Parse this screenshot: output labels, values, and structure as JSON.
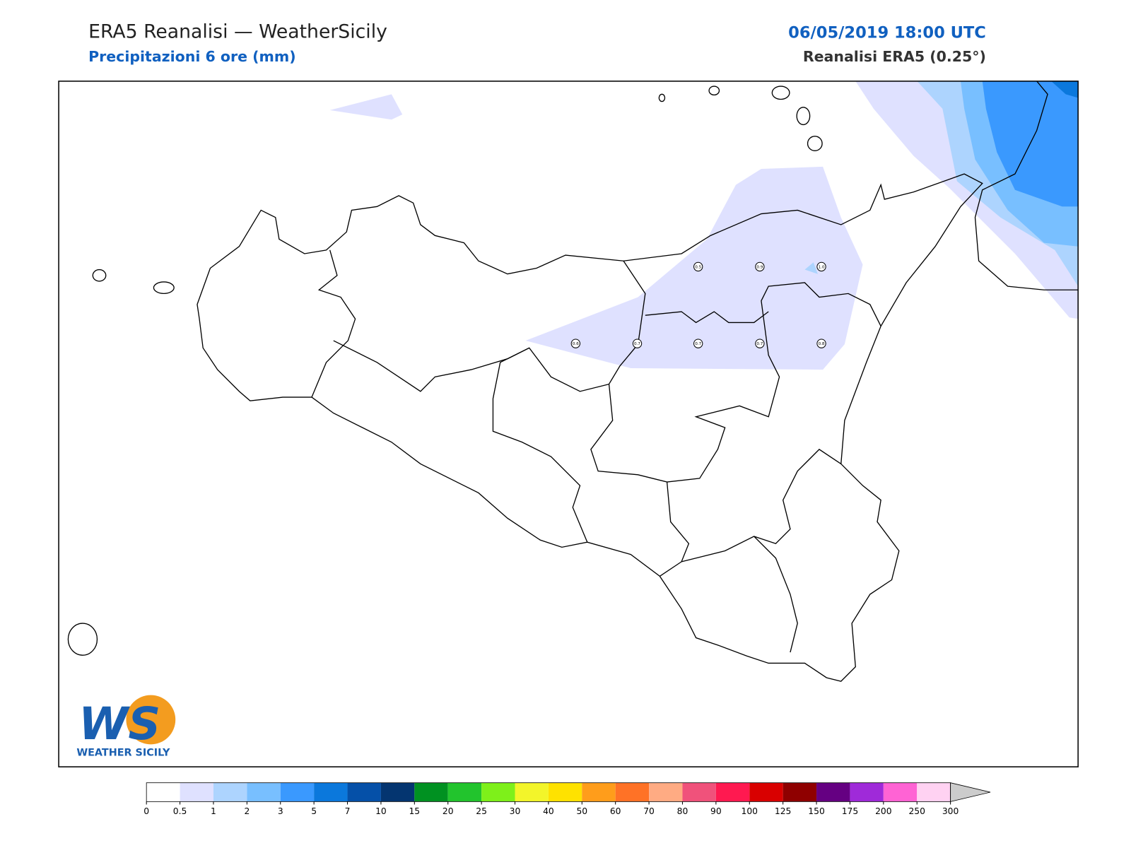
{
  "header": {
    "title": "ERA5 Reanalisi — WeatherSicily",
    "subtitle": "Precipitazioni 6 ore (mm)",
    "datetime": "06/05/2019 18:00 UTC",
    "source": "Reanalisi ERA5 (0.25°)"
  },
  "map": {
    "stations": [
      "0.5",
      "0.9",
      "1.0",
      "0.6",
      "0.7",
      "0.7",
      "0.7",
      "0.8"
    ]
  },
  "colorbar": {
    "ticks": [
      0,
      0.5,
      1,
      2,
      3,
      5,
      7,
      10,
      15,
      20,
      25,
      30,
      40,
      50,
      60,
      70,
      80,
      90,
      100,
      125,
      150,
      175,
      200,
      250,
      300
    ],
    "colors": [
      "#ffffff",
      "#dfe1ff",
      "#add4fe",
      "#78bfff",
      "#3a99fe",
      "#0b78dc",
      "#0550a8",
      "#043570",
      "#009121",
      "#22c42d",
      "#7ef01a",
      "#f3f52a",
      "#fee200",
      "#ff9d1b",
      "#ff7226",
      "#ffab83",
      "#f0527b",
      "#ff1950",
      "#d90000",
      "#8f0000",
      "#650082",
      "#9f2ad9",
      "#ff63d4",
      "#ffd2f2"
    ],
    "extend_color": "#cccccc"
  },
  "logo": {
    "mark": "WS",
    "name": "WEATHER SICILY"
  }
}
